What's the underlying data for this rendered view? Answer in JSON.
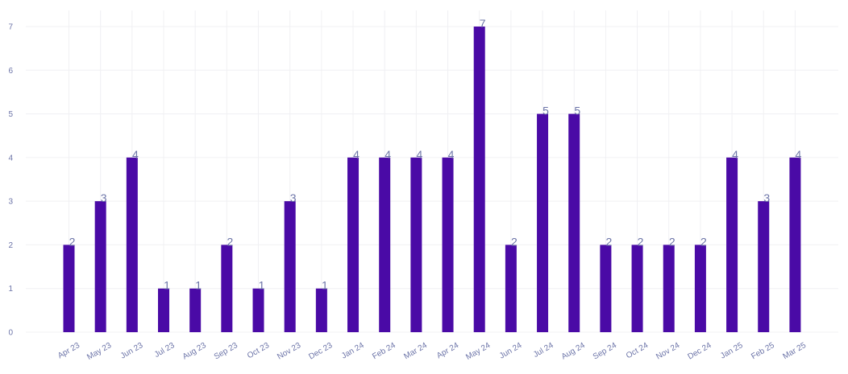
{
  "chart_data": {
    "type": "bar",
    "categories": [
      "Apr 23",
      "May 23",
      "Jun 23",
      "Jul 23",
      "Aug 23",
      "Sep 23",
      "Oct 23",
      "Nov 23",
      "Dec 23",
      "Jan 24",
      "Feb 24",
      "Mar 24",
      "Apr 24",
      "May 24",
      "Jun 24",
      "Jul 24",
      "Aug 24",
      "Sep 24",
      "Oct 24",
      "Nov 24",
      "Dec 24",
      "Jan 25",
      "Feb 25",
      "Mar 25"
    ],
    "values": [
      2,
      3,
      4,
      1,
      1,
      2,
      1,
      3,
      1,
      4,
      4,
      4,
      4,
      7,
      2,
      5,
      5,
      2,
      2,
      2,
      2,
      4,
      3,
      4
    ],
    "title": "",
    "xlabel": "",
    "ylabel": "",
    "ylim": [
      0,
      7
    ],
    "yticks": [
      0,
      1,
      2,
      3,
      4,
      5,
      6,
      7
    ],
    "grid": true,
    "data_labels": true,
    "colors": {
      "bar": "#4a0aa6",
      "label": "#6c74a8",
      "grid": "#f0f0f3"
    }
  }
}
